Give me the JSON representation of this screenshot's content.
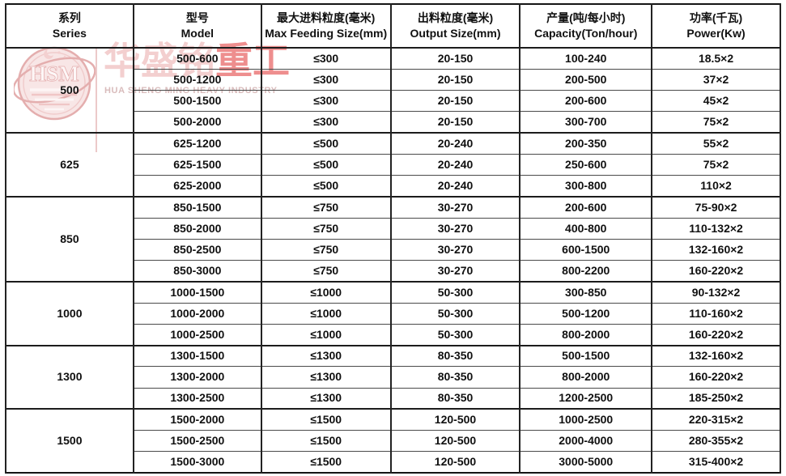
{
  "table": {
    "columns": [
      {
        "key": "series",
        "zh": "系列",
        "en": "Series"
      },
      {
        "key": "model",
        "zh": "型号",
        "en": "Model"
      },
      {
        "key": "max-feeding",
        "zh": "最大进料粒度(毫米)",
        "en": "Max Feeding Size(mm)"
      },
      {
        "key": "output-size",
        "zh": "出料粒度(毫米)",
        "en": "Output Size(mm)"
      },
      {
        "key": "capacity",
        "zh": "产量(吨/每小时)",
        "en": "Capacity(Ton/hour)"
      },
      {
        "key": "power",
        "zh": "功率(千瓦)",
        "en": "Power(Kw)"
      }
    ],
    "groups": [
      {
        "series": "500",
        "rows": [
          [
            "500-600",
            "≤300",
            "20-150",
            "100-240",
            "18.5×2"
          ],
          [
            "500-1200",
            "≤300",
            "20-150",
            "200-500",
            "37×2"
          ],
          [
            "500-1500",
            "≤300",
            "20-150",
            "200-600",
            "45×2"
          ],
          [
            "500-2000",
            "≤300",
            "20-150",
            "300-700",
            "75×2"
          ]
        ]
      },
      {
        "series": "625",
        "rows": [
          [
            "625-1200",
            "≤500",
            "20-240",
            "200-350",
            "55×2"
          ],
          [
            "625-1500",
            "≤500",
            "20-240",
            "250-600",
            "75×2"
          ],
          [
            "625-2000",
            "≤500",
            "20-240",
            "300-800",
            "110×2"
          ]
        ]
      },
      {
        "series": "850",
        "rows": [
          [
            "850-1500",
            "≤750",
            "30-270",
            "200-600",
            "75-90×2"
          ],
          [
            "850-2000",
            "≤750",
            "30-270",
            "400-800",
            "110-132×2"
          ],
          [
            "850-2500",
            "≤750",
            "30-270",
            "600-1500",
            "132-160×2"
          ],
          [
            "850-3000",
            "≤750",
            "30-270",
            "800-2200",
            "160-220×2"
          ]
        ]
      },
      {
        "series": "1000",
        "rows": [
          [
            "1000-1500",
            "≤1000",
            "50-300",
            "300-850",
            "90-132×2"
          ],
          [
            "1000-2000",
            "≤1000",
            "50-300",
            "500-1200",
            "110-160×2"
          ],
          [
            "1000-2500",
            "≤1000",
            "50-300",
            "800-2000",
            "160-220×2"
          ]
        ]
      },
      {
        "series": "1300",
        "rows": [
          [
            "1300-1500",
            "≤1300",
            "80-350",
            "500-1500",
            "132-160×2"
          ],
          [
            "1300-2000",
            "≤1300",
            "80-350",
            "800-2000",
            "160-220×2"
          ],
          [
            "1300-2500",
            "≤1300",
            "80-350",
            "1200-2500",
            "185-250×2"
          ]
        ]
      },
      {
        "series": "1500",
        "rows": [
          [
            "1500-2000",
            "≤1500",
            "120-500",
            "1000-2500",
            "220-315×2"
          ],
          [
            "1500-2500",
            "≤1500",
            "120-500",
            "2000-4000",
            "280-355×2"
          ],
          [
            "1500-3000",
            "≤1500",
            "120-500",
            "3000-5000",
            "315-400×2"
          ]
        ]
      }
    ]
  },
  "watermark": {
    "logo_text": "HSM",
    "brand_zh_light": "华盛铭",
    "brand_zh_red": "重工",
    "brand_en": "HUA SHENG MING HEAVY INDUSTRY",
    "colors": {
      "light_pink": "#f3cfcf",
      "brand_red": "#ee8e8e",
      "en_text": "#d9bcbc",
      "logo_stroke": "#e2a6a6"
    }
  }
}
